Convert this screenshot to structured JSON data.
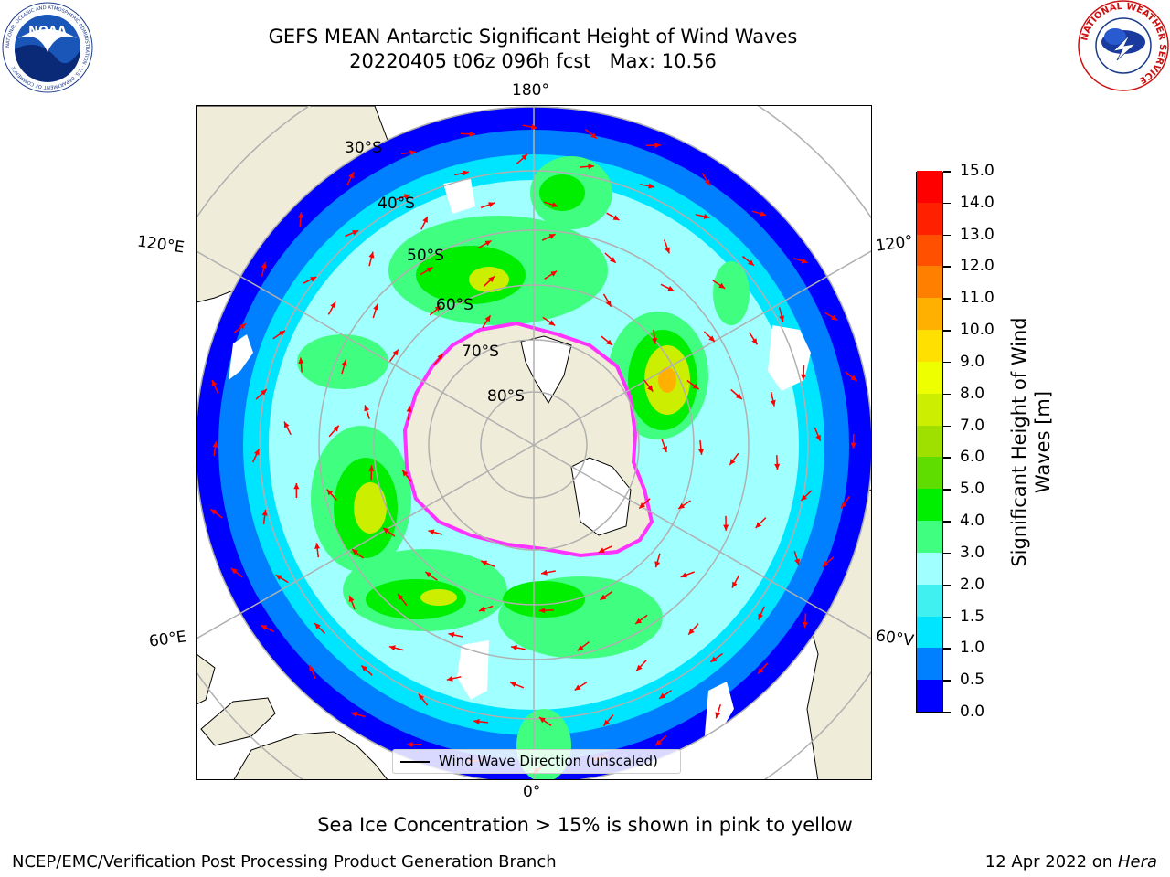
{
  "header": {
    "title_line1": "GEFS MEAN Antarctic Significant Height of Wind Waves",
    "title_line2": "20220405 t06z 096h fcst   Max: 10.56"
  },
  "map": {
    "top_label": "180°",
    "bottom_label": "0°",
    "left_upper_label": "120°E",
    "left_lower_label": "60°E",
    "right_upper_label": "120°",
    "right_lower_label": "60°V",
    "lat_labels": [
      "30°S",
      "40°S",
      "50°S",
      "60°S",
      "70°S",
      "80°S"
    ],
    "legend_label": "Wind Wave Direction (unscaled)",
    "arrow_color": "#ff0000"
  },
  "colorbar": {
    "title": "Significant Height of Wind Waves [m]",
    "levels": [
      "0.0",
      "0.5",
      "1.0",
      "1.5",
      "2.0",
      "3.0",
      "4.0",
      "5.0",
      "6.0",
      "7.0",
      "8.0",
      "9.0",
      "10.0",
      "11.0",
      "12.0",
      "13.0",
      "14.0",
      "15.0"
    ],
    "colors": [
      "#0000ff",
      "#0080ff",
      "#00e5ff",
      "#40f0f0",
      "#a0ffff",
      "#40ff80",
      "#00ee00",
      "#60dd00",
      "#a0e000",
      "#ccee00",
      "#eeff00",
      "#ffe000",
      "#ffb000",
      "#ff8000",
      "#ff5000",
      "#ff2000",
      "#ff0000"
    ]
  },
  "logos": {
    "noaa_text": "NOAA",
    "noaa_ring_text": "NATIONAL OCEANIC AND ATMOSPHERIC ADMINISTRATION · U.S. DEPARTMENT OF COMMERCE",
    "nws_ring_text": "NATIONAL WEATHER SERVICE"
  },
  "footer": {
    "note": "Sea Ice Concentration > 15% is shown in pink to yellow",
    "left": "NCEP/EMC/Verification Post Processing Product Generation Branch",
    "right_date": "12 Apr 2022 on ",
    "right_host": "Hera"
  }
}
